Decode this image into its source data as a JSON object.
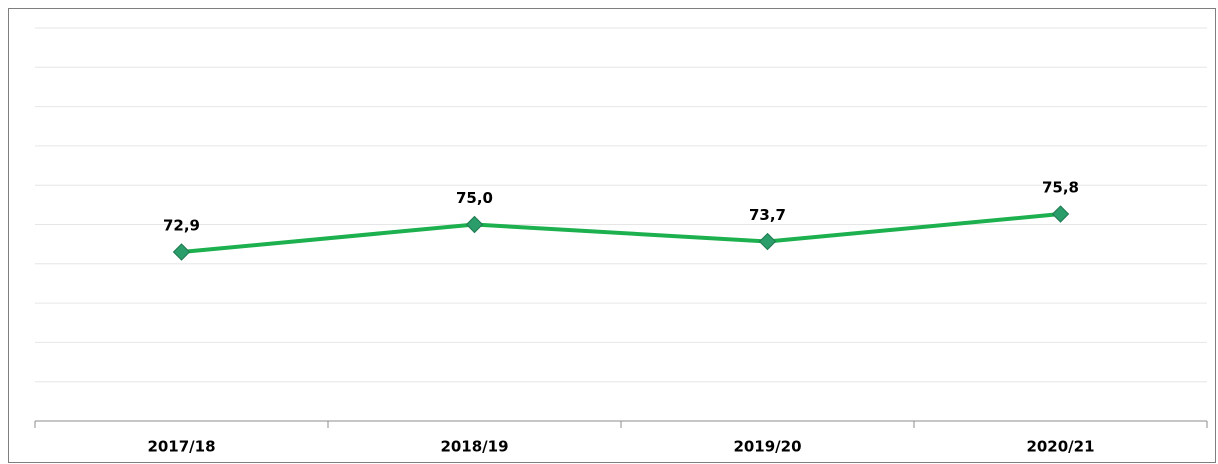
{
  "chart_data": {
    "type": "line",
    "categories": [
      "2017/18",
      "2018/19",
      "2019/20",
      "2020/21"
    ],
    "values": [
      72.9,
      75.0,
      73.7,
      75.8
    ],
    "value_labels": [
      "72,9",
      "75,0",
      "73,7",
      "75,8"
    ],
    "color": "#1db04f",
    "marker_color": "#2a9d6a",
    "ylim": [
      60,
      90
    ],
    "yticks": [
      60,
      63,
      66,
      69,
      72,
      75,
      78,
      81,
      84,
      87,
      90
    ],
    "grid": true
  }
}
